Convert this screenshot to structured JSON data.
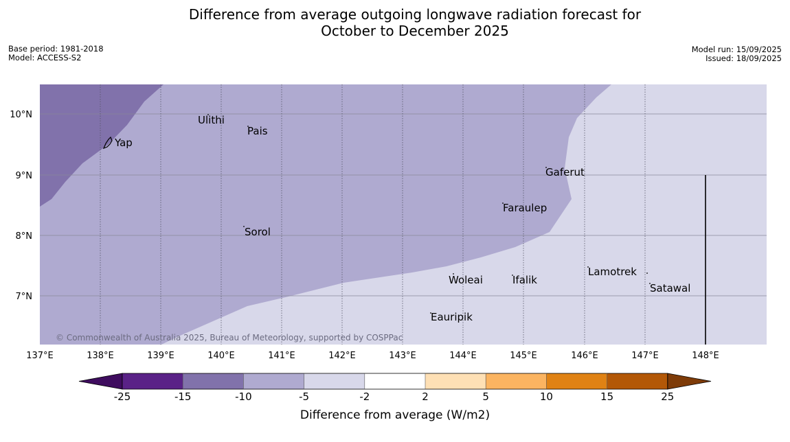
{
  "header": {
    "title_line1": "Difference from average outgoing longwave radiation forecast for",
    "title_line2": "October to December 2025",
    "base_period": "Base period: 1981-2018",
    "model": "Model: ACCESS-S2",
    "model_run": "Model run: 15/09/2025",
    "issued": "Issued: 18/09/2025"
  },
  "map": {
    "lon_ticks": [
      "137°E",
      "138°E",
      "139°E",
      "140°E",
      "141°E",
      "142°E",
      "143°E",
      "144°E",
      "145°E",
      "146°E",
      "147°E",
      "148°E"
    ],
    "lat_ticks": [
      "10°N",
      "9°N",
      "8°N",
      "7°N"
    ],
    "credit": "© Commonwealth of Australia 2025, Bureau of Meteorology, supported by COSPPac",
    "places": [
      "Ulithi",
      "Pais",
      "Yap",
      "Gaferut",
      "Faraulep",
      "Sorol",
      "Lamotrek",
      "Woleai",
      "Ifalik",
      "Satawal",
      "Eauripik"
    ],
    "zone_colors": {
      "band_-15_-10": "#8172ab",
      "band_-10_-5": "#afaad0",
      "band_-5_-2": "#d8d8ea"
    }
  },
  "colorbar": {
    "ticks": [
      "-25",
      "-15",
      "-10",
      "-5",
      "-2",
      "2",
      "5",
      "10",
      "15",
      "25"
    ],
    "colors": [
      "#3f0d5f",
      "#5a2287",
      "#8172ab",
      "#afaad0",
      "#d8d8ea",
      "#ffffff",
      "#fee0b5",
      "#fbb461",
      "#e08214",
      "#b35807",
      "#7e3b08"
    ],
    "label": "Difference from average (W/m2)"
  }
}
